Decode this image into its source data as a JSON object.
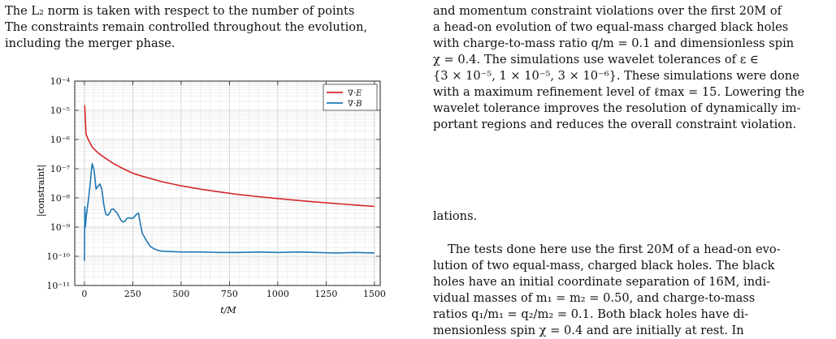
{
  "left_caption": {
    "line1": "The L₂ norm is taken with respect to the number of points",
    "line2": "The constraints remain controlled throughout the evolution,",
    "line3": "including the merger phase."
  },
  "right_caption": {
    "lines": [
      "and momentum constraint violations over the first 20M of",
      "a head-on evolution of two equal-mass charged black holes",
      "with charge-to-mass ratio q/m = 0.1 and dimensionless spin",
      "χ = 0.4.  The simulations use wavelet tolerances of ε ∈",
      "{3 × 10⁻⁵, 1 × 10⁻⁵, 3 × 10⁻⁶}. These simulations were done",
      "with a maximum refinement level of ℓmax = 15. Lowering the",
      "wavelet tolerance improves the resolution of dynamically im-",
      "portant regions and reduces the overall constraint violation."
    ]
  },
  "fragment": "lations.",
  "body_text": {
    "lines": [
      "The tests done here use the first 20M of a head-on evo-",
      "lution of two equal-mass, charged black holes. The black",
      "holes have an initial coordinate separation of 16M, indi-",
      "vidual masses of m₁ = m₂ = 0.50, and charge-to-mass",
      "ratios q₁/m₁ = q₂/m₂ = 0.1. Both black holes have di-",
      "mensionless spin χ = 0.4 and are initially at rest. In"
    ]
  },
  "chart_data": {
    "type": "line",
    "xlabel": "t/M",
    "ylabel": "|constraint|",
    "y_scale": "log",
    "xlim": [
      -50,
      1530
    ],
    "ylim": [
      1e-11,
      0.0001
    ],
    "xticks": [
      "0",
      "250",
      "500",
      "750",
      "1000",
      "1250",
      "1500"
    ],
    "xtick_values": [
      0,
      250,
      500,
      750,
      1000,
      1250,
      1500
    ],
    "yticks": [
      "10⁻⁴",
      "10⁻⁵",
      "10⁻⁶",
      "10⁻⁷",
      "10⁻⁸",
      "10⁻⁹",
      "10⁻¹⁰",
      "10⁻¹¹"
    ],
    "ytick_exponents": [
      -4,
      -5,
      -6,
      -7,
      -8,
      -9,
      -10,
      -11
    ],
    "grid": true,
    "legend_position": "top-right",
    "series": [
      {
        "name": "∇·E",
        "color": "#d62728",
        "x": [
          0,
          2,
          5,
          8,
          12,
          20,
          40,
          70,
          100,
          150,
          200,
          250,
          300,
          400,
          500,
          600,
          700,
          800,
          900,
          1000,
          1100,
          1200,
          1300,
          1400,
          1500
        ],
        "y": [
          1.5e-05,
          1.2e-05,
          5e-06,
          1.6e-06,
          1.3e-06,
          1e-06,
          5.5e-07,
          3.5e-07,
          2.5e-07,
          1.5e-07,
          1e-07,
          7e-08,
          5.5e-08,
          3.6e-08,
          2.6e-08,
          2e-08,
          1.6e-08,
          1.3e-08,
          1.1e-08,
          9.5e-09,
          8.2e-09,
          7.2e-09,
          6.4e-09,
          5.7e-09,
          5.1e-09
        ]
      },
      {
        "name": "∇·B",
        "color": "#1f77b4",
        "x": [
          0,
          2,
          5,
          10,
          20,
          30,
          40,
          50,
          60,
          70,
          80,
          90,
          100,
          110,
          120,
          130,
          140,
          150,
          160,
          170,
          180,
          190,
          200,
          210,
          220,
          230,
          240,
          250,
          260,
          270,
          280,
          290,
          300,
          320,
          340,
          360,
          380,
          400,
          450,
          500,
          600,
          700,
          800,
          900,
          1000,
          1100,
          1200,
          1300,
          1400,
          1500
        ],
        "y": [
          7e-11,
          5e-09,
          1e-09,
          2.5e-09,
          8e-09,
          3e-08,
          1.5e-07,
          9e-08,
          2e-08,
          2.5e-08,
          3e-08,
          2e-08,
          6e-09,
          2.8e-09,
          2.5e-09,
          3e-09,
          4e-09,
          4.2e-09,
          3.5e-09,
          3e-09,
          2.2e-09,
          1.7e-09,
          1.5e-09,
          1.6e-09,
          2e-09,
          2.1e-09,
          2e-09,
          2e-09,
          2.3e-09,
          2.8e-09,
          3e-09,
          1.2e-09,
          6e-10,
          3.5e-10,
          2.2e-10,
          1.8e-10,
          1.6e-10,
          1.5e-10,
          1.45e-10,
          1.4e-10,
          1.4e-10,
          1.35e-10,
          1.35e-10,
          1.4e-10,
          1.35e-10,
          1.4e-10,
          1.35e-10,
          1.3e-10,
          1.35e-10,
          1.3e-10
        ]
      }
    ]
  }
}
